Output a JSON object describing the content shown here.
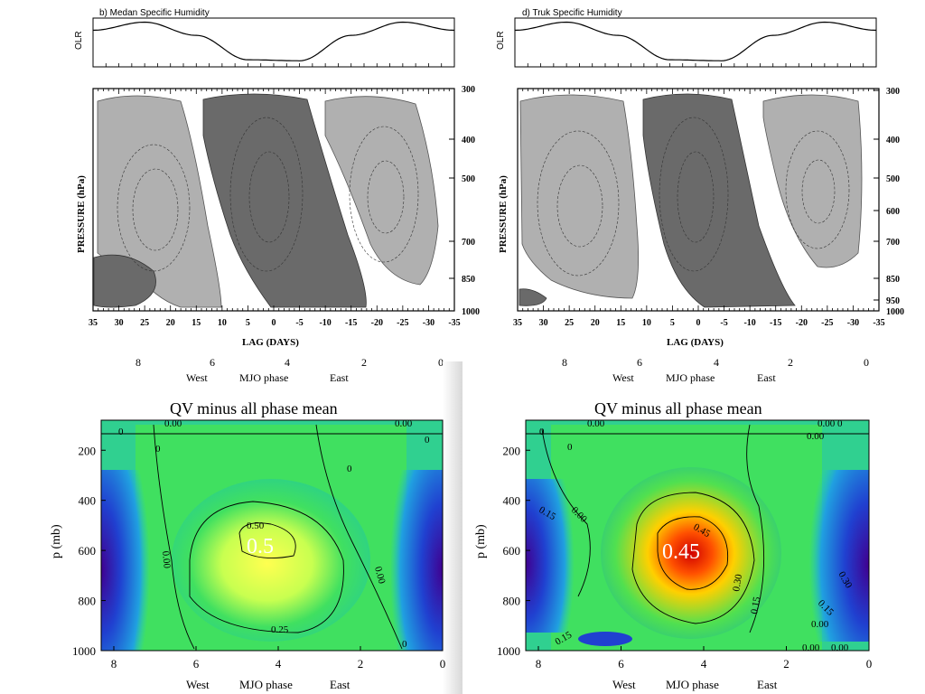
{
  "chart_data": [
    {
      "type": "line",
      "title": "b) Medan Specific Humidity",
      "panel": "top-left-olr",
      "ylabel": "OLR",
      "x": [
        35,
        25,
        15,
        5,
        -5,
        -15,
        -25,
        -35
      ],
      "values": [
        0.6,
        1.0,
        0.35,
        -0.85,
        -0.9,
        0.35,
        1.0,
        0.6
      ],
      "ylim": [
        -1.2,
        1.2
      ]
    },
    {
      "type": "heatmap",
      "panel": "top-left-lag-pressure",
      "xlabel": "LAG (DAYS)",
      "ylabel": "PRESSURE (hPa)",
      "x_ticks": [
        "35",
        "30",
        "25",
        "20",
        "15",
        "10",
        "5",
        "0",
        "-5",
        "-10",
        "-15",
        "-20",
        "-25",
        "-30",
        "-35"
      ],
      "y_ticks": [
        "300",
        "400",
        "500",
        "700",
        "850",
        "1000"
      ],
      "extra_labels": {
        "bottom_edge_cut": [
          "8",
          "6",
          "4",
          "2",
          "0"
        ],
        "west": "West",
        "mjo": "MJO phase",
        "east": "East"
      }
    },
    {
      "type": "line",
      "title": "d) Truk Specific Humidity",
      "panel": "top-right-olr",
      "ylabel": "OLR",
      "x": [
        35,
        25,
        15,
        5,
        -5,
        -15,
        -25,
        -35
      ],
      "values": [
        0.6,
        1.0,
        0.35,
        -0.85,
        -0.9,
        0.35,
        1.0,
        0.6
      ],
      "ylim": [
        -1.2,
        1.2
      ]
    },
    {
      "type": "heatmap",
      "panel": "top-right-lag-pressure",
      "xlabel": "LAG (DAYS)",
      "ylabel": "PRESSURE (hPa)",
      "x_ticks": [
        "35",
        "30",
        "25",
        "20",
        "15",
        "10",
        "5",
        "0",
        "-5",
        "-10",
        "-15",
        "-20",
        "-25",
        "-30",
        "-35"
      ],
      "y_ticks": [
        "300",
        "400",
        "500",
        "600",
        "700",
        "850",
        "950",
        "1000"
      ],
      "extra_labels": {
        "bottom_edge_cut": [
          "8",
          "6",
          "4",
          "2",
          "0"
        ],
        "west": "West",
        "mjo": "MJO phase",
        "east": "East"
      }
    },
    {
      "type": "heatmap",
      "panel": "bottom-left-qv",
      "title": "QV minus all phase mean",
      "xlabel": "MJO phase",
      "xlabel_left": "West",
      "xlabel_right": "East",
      "ylabel": "p (mb)",
      "x_ticks": [
        "8",
        "6",
        "4",
        "2",
        "0"
      ],
      "y_ticks": [
        "200",
        "400",
        "600",
        "800",
        "1000"
      ],
      "contour_labels": [
        "0.00",
        "0",
        "0",
        "0.00",
        "0",
        "0.50",
        "0.00",
        "0.00",
        "0.25",
        "0",
        "0"
      ],
      "annotation": "0.5"
    },
    {
      "type": "heatmap",
      "panel": "bottom-right-qv",
      "title": "QV minus all phase mean",
      "xlabel": "MJO phase",
      "xlabel_left": "West",
      "xlabel_right": "East",
      "ylabel": "p (mb)",
      "x_ticks": [
        "8",
        "6",
        "4",
        "2",
        "0"
      ],
      "y_ticks": [
        "200",
        "400",
        "600",
        "800",
        "1000"
      ],
      "contour_labels": [
        "0.00",
        "0",
        "0",
        "0.00 0",
        "0.00",
        "0.15",
        "0.00",
        "0.45",
        "0.30",
        "0.15",
        "0.30",
        "0.15",
        "0.00",
        "0.15",
        "0.00",
        "0.00"
      ],
      "annotation": "0.45"
    }
  ]
}
